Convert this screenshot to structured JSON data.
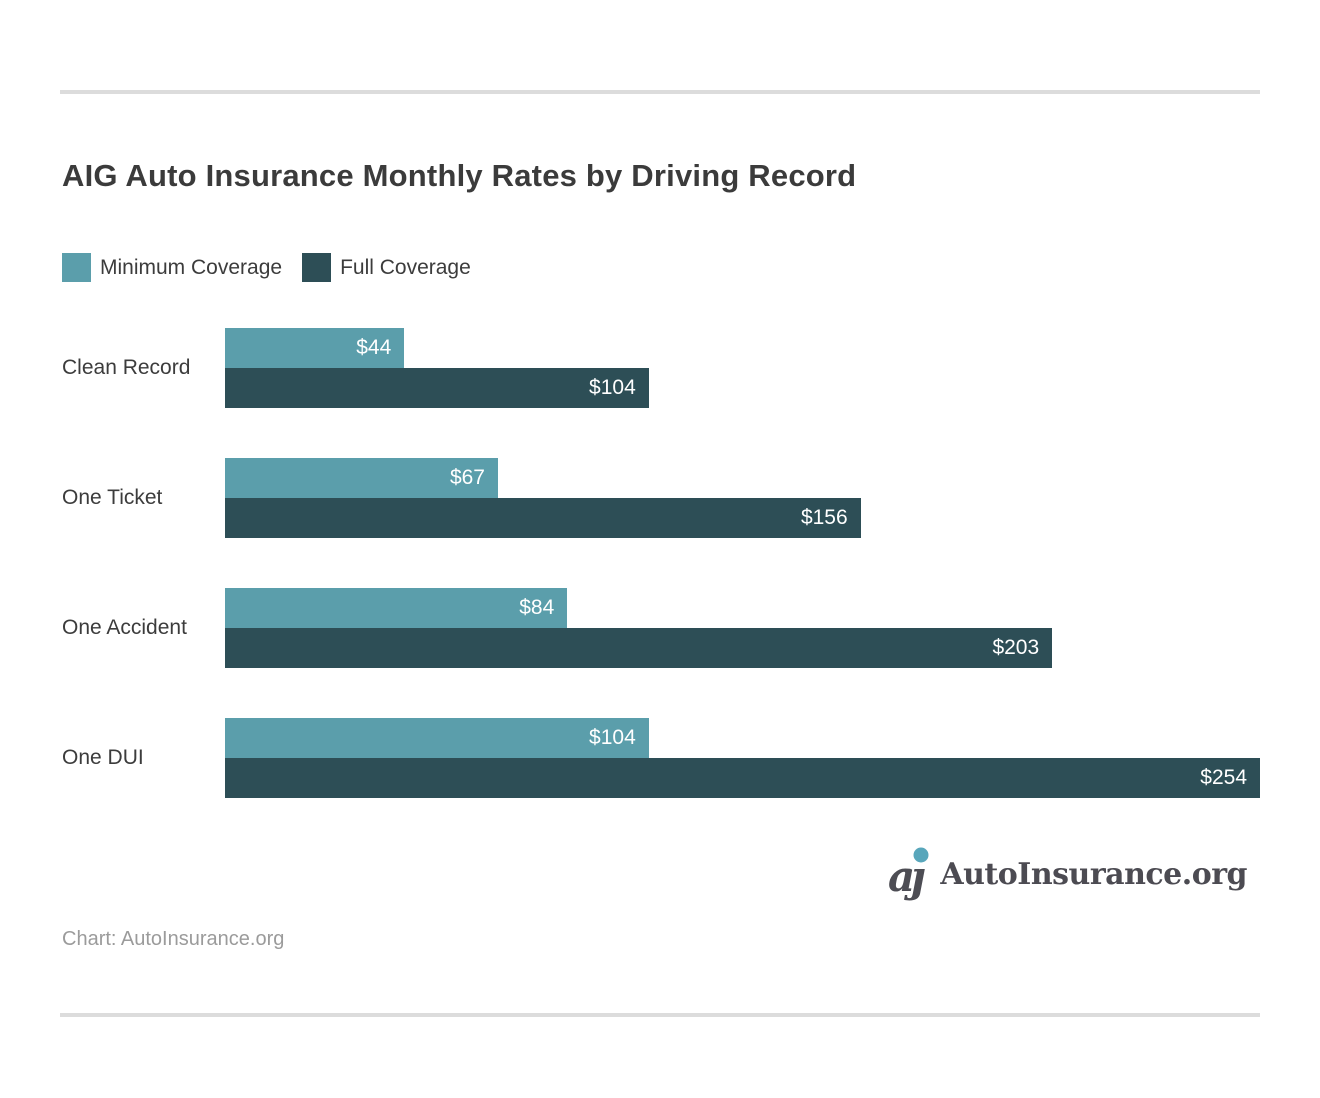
{
  "chart_data": {
    "type": "bar",
    "orientation": "horizontal",
    "title": "AIG Auto Insurance Monthly Rates by Driving Record",
    "categories": [
      "Clean Record",
      "One Ticket",
      "One Accident",
      "One DUI"
    ],
    "series": [
      {
        "name": "Minimum Coverage",
        "color": "#5B9EAB",
        "values": [
          44,
          67,
          84,
          104
        ],
        "labels": [
          "$44",
          "$67",
          "$84",
          "$104"
        ]
      },
      {
        "name": "Full Coverage",
        "color": "#2D4E56",
        "values": [
          104,
          156,
          203,
          254
        ],
        "labels": [
          "$104",
          "$156",
          "$203",
          "$254"
        ]
      }
    ],
    "xlim": [
      0,
      254
    ],
    "xlabel": "",
    "ylabel": "",
    "grid": false,
    "legend_position": "top-left",
    "value_labels": "inside-end",
    "value_label_color": "#FFFFFF"
  },
  "footer": {
    "source_text": "Chart: AutoInsurance.org",
    "logo_text": "AutoInsurance.org",
    "logo_mark_a": "a",
    "logo_mark_j": "ȷ"
  },
  "colors": {
    "background": "#FFFFFF",
    "title_text": "#3B3B3B",
    "category_text": "#3C3C3C",
    "legend_text": "#3C3C3C",
    "divider": "#DCDCDC",
    "source_text": "#9B9B9B",
    "logo_text": "#4C4B52",
    "logo_glyph": "#4D4D54",
    "logo_dot": "#58A6BB"
  }
}
